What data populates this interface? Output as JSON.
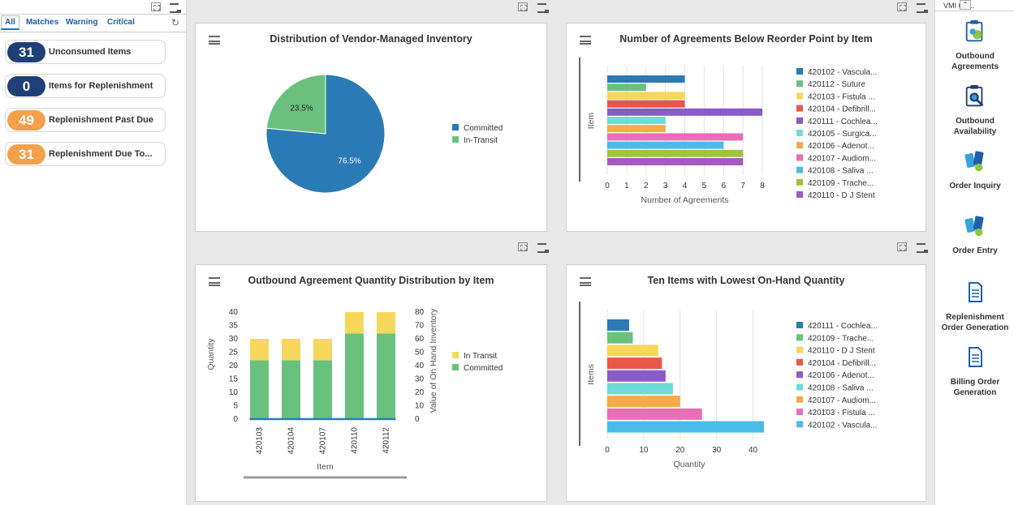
{
  "filters": {
    "tabs": [
      "All",
      "Matches",
      "Warning",
      "Critical"
    ],
    "active_tab": "All"
  },
  "alerts": [
    {
      "count": "31",
      "label": "Unconsumed Items",
      "color": "#1f3f78"
    },
    {
      "count": "0",
      "label": "Items for Replenishment",
      "color": "#1f3f78"
    },
    {
      "count": "49",
      "label": "Replenishment Past Due",
      "color": "#f5a04a"
    },
    {
      "count": "31",
      "label": "Replenishment Due To...",
      "color": "#f5a04a"
    }
  ],
  "right_panel": {
    "title": "VMI Ou...",
    "items": [
      {
        "label": "Outbound Agreements",
        "icon": "clipboard-icon"
      },
      {
        "label": "Outbound Availability",
        "icon": "clipboard-search-icon"
      },
      {
        "label": "Order Inquiry",
        "icon": "order-inquiry-icon"
      },
      {
        "label": "Order Entry",
        "icon": "order-entry-icon"
      },
      {
        "label": "Replenishment Order Generation",
        "icon": "document-icon"
      },
      {
        "label": "Billing Order Generation",
        "icon": "document-icon"
      }
    ]
  },
  "cards": {
    "pie": {
      "title": "Distribution of Vendor-Managed Inventory"
    },
    "agreements": {
      "title": "Number of Agreements Below Reorder Point by Item"
    },
    "outbound": {
      "title": "Outbound Agreement Quantity Distribution by Item"
    },
    "lowest": {
      "title": "Ten Items with Lowest On-Hand Quantity"
    }
  },
  "chart_data": [
    {
      "type": "pie",
      "title": "Distribution of Vendor-Managed Inventory",
      "slices": [
        {
          "name": "Committed",
          "value": 76.5,
          "label": "76.5%",
          "color": "#2a7ab5"
        },
        {
          "name": "In-Transit",
          "value": 23.5,
          "label": "23.5%",
          "color": "#6ac17e"
        }
      ],
      "legend": "right"
    },
    {
      "type": "bar",
      "orientation": "horizontal",
      "title": "Number of Agreements Below Reorder Point by Item",
      "xlabel": "Number of Agreements",
      "ylabel": "Item",
      "xlim": [
        0,
        8
      ],
      "xticks": [
        "0",
        "1",
        "2",
        "3",
        "4",
        "5",
        "6",
        "7",
        "8"
      ],
      "series": [
        {
          "name": "420102 - Vascula...",
          "value": 4,
          "color": "#2a7ab5"
        },
        {
          "name": "420112 - Suture",
          "value": 2,
          "color": "#6ac17e"
        },
        {
          "name": "420103 - Fistula ...",
          "value": 4,
          "color": "#f7d75a"
        },
        {
          "name": "420104 - Defibrill...",
          "value": 4,
          "color": "#e9574a"
        },
        {
          "name": "420111 - Cochlea...",
          "value": 8,
          "color": "#8a5bc8"
        },
        {
          "name": "420105 - Surgica...",
          "value": 3,
          "color": "#6fdbd6"
        },
        {
          "name": "420106 - Adenot...",
          "value": 3,
          "color": "#f5a947"
        },
        {
          "name": "420107 - Audiom...",
          "value": 7,
          "color": "#e86fb6"
        },
        {
          "name": "420108 - Saliva ...",
          "value": 6,
          "color": "#49bde9"
        },
        {
          "name": "420109 - Trache...",
          "value": 7,
          "color": "#a0c43a"
        },
        {
          "name": "420110 - D J Stent",
          "value": 7,
          "color": "#a45bbd"
        }
      ],
      "legend": "right"
    },
    {
      "type": "bar",
      "stacked": true,
      "title": "Outbound Agreement Quantity Distribution by Item",
      "xlabel": "Item",
      "ylabel": "Quantity",
      "y2label": "Value of On Hand Inventory",
      "ylim": [
        0,
        40
      ],
      "y2lim": [
        0,
        80
      ],
      "yticks": [
        "0",
        "5",
        "10",
        "15",
        "20",
        "25",
        "30",
        "35",
        "40"
      ],
      "y2ticks": [
        "0",
        "10",
        "20",
        "30",
        "40",
        "50",
        "60",
        "70",
        "80"
      ],
      "categories": [
        "420103",
        "420104",
        "420107",
        "420110",
        "420112"
      ],
      "series": [
        {
          "name": "Committed",
          "values": [
            22,
            22,
            22,
            32,
            32
          ],
          "color": "#6ac17e"
        },
        {
          "name": "In Transit",
          "values": [
            8,
            8,
            8,
            8,
            8
          ],
          "color": "#f7d75a"
        }
      ],
      "line_series": {
        "values": [
          0,
          0,
          0,
          0,
          0
        ],
        "color": "#2a7ab5"
      },
      "legend": "right"
    },
    {
      "type": "bar",
      "orientation": "horizontal",
      "title": "Ten Items with Lowest On-Hand Quantity",
      "xlabel": "Quantity",
      "ylabel": "Items",
      "xlim": [
        0,
        45
      ],
      "xticks": [
        "0",
        "10",
        "20",
        "30",
        "40"
      ],
      "series": [
        {
          "name": "420111 - Cochlea...",
          "value": 6,
          "color": "#2a7ab5"
        },
        {
          "name": "420109 - Trache...",
          "value": 7,
          "color": "#6ac17e"
        },
        {
          "name": "420110 - D J Stent",
          "value": 14,
          "color": "#f7d75a"
        },
        {
          "name": "420104 - Defibrill...",
          "value": 15,
          "color": "#e9574a"
        },
        {
          "name": "420106 - Adenot...",
          "value": 16,
          "color": "#8a5bc8"
        },
        {
          "name": "420108 - Saliva ...",
          "value": 18,
          "color": "#6fdbd6"
        },
        {
          "name": "420107 - Audiom...",
          "value": 20,
          "color": "#f5a947"
        },
        {
          "name": "420103 - Fistula ...",
          "value": 26,
          "color": "#e86fb6"
        },
        {
          "name": "420102 - Vascula...",
          "value": 43,
          "color": "#49bde9"
        }
      ],
      "legend": "right"
    }
  ]
}
